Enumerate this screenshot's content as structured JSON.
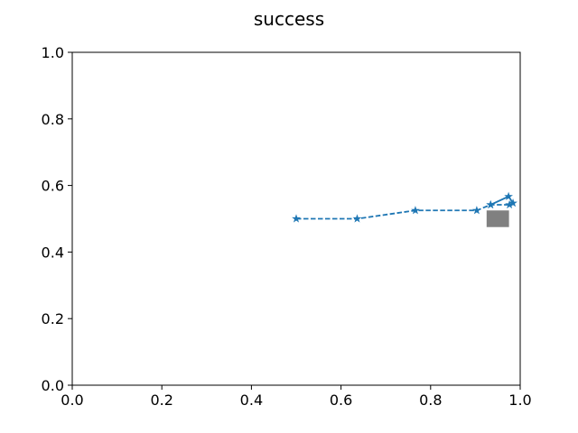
{
  "chart_data": {
    "type": "line",
    "title": "success",
    "xlabel": "",
    "ylabel": "",
    "xlim": [
      0.0,
      1.0
    ],
    "ylim": [
      0.0,
      1.0
    ],
    "xticks": [
      0.0,
      0.2,
      0.4,
      0.6,
      0.8,
      1.0
    ],
    "yticks": [
      0.0,
      0.2,
      0.4,
      0.6,
      0.8,
      1.0
    ],
    "xtick_labels": [
      "0.0",
      "0.2",
      "0.4",
      "0.6",
      "0.8",
      "1.0"
    ],
    "ytick_labels": [
      "0.0",
      "0.2",
      "0.4",
      "0.6",
      "0.8",
      "1.0"
    ],
    "grid": false,
    "series": [
      {
        "line_style": "dashed",
        "marker": "star",
        "color": "#1f77b4",
        "points": [
          [
            0.5,
            0.5
          ],
          [
            0.636,
            0.5
          ],
          [
            0.766,
            0.525
          ],
          [
            0.903,
            0.525
          ],
          [
            0.934,
            0.542
          ],
          [
            0.976,
            0.542
          ]
        ]
      },
      {
        "line_style": "solid",
        "marker": "star",
        "color": "#1f77b4",
        "points": [
          [
            0.934,
            0.542
          ],
          [
            0.974,
            0.567
          ],
          [
            0.984,
            0.547
          ]
        ]
      }
    ],
    "target": {
      "x_range": [
        0.925,
        0.975
      ],
      "y_range": [
        0.475,
        0.525
      ],
      "color": "#808080"
    }
  }
}
